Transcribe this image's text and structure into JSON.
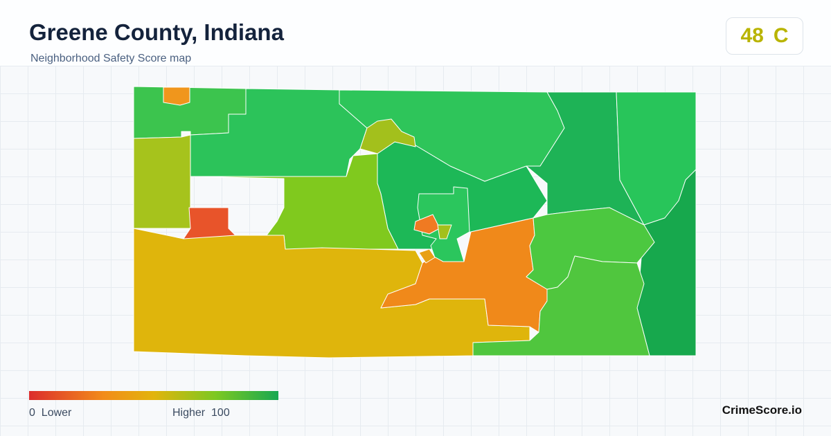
{
  "header": {
    "title": "Greene County, Indiana",
    "subtitle": "Neighborhood Safety Score map",
    "score": 48,
    "grade": "C"
  },
  "legend": {
    "min": 0,
    "low_label": "Lower",
    "high_label": "Higher",
    "max": 100
  },
  "footer": {
    "brand": "CrimeScore.io"
  }
}
